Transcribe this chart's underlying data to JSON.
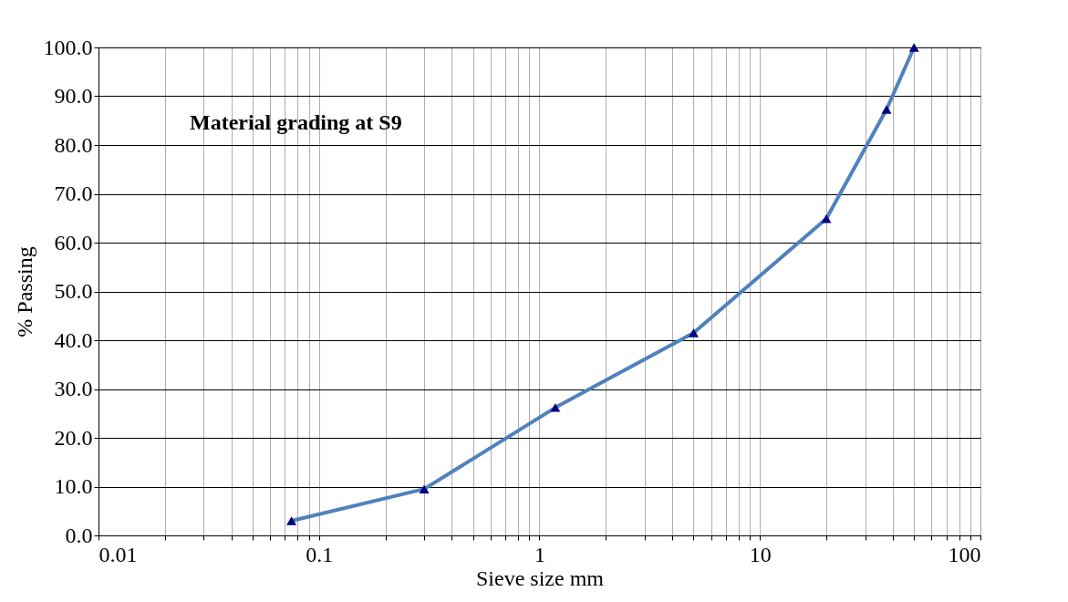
{
  "chart_data": {
    "type": "line",
    "title": "Material grading at S9",
    "xlabel": "Sieve size mm",
    "ylabel": "% Passing",
    "x": [
      0.075,
      0.3,
      1.18,
      5,
      20,
      37.5,
      50
    ],
    "series": [
      {
        "color": "#4f81bd",
        "values": [
          3.0,
          9.5,
          26.2,
          41.5,
          64.9,
          87.3,
          100.0
        ]
      }
    ],
    "log": "x",
    "xlim": [
      0.01,
      100
    ],
    "xticks": [
      {
        "value": 0.01,
        "label": "0.01"
      },
      {
        "value": 0.02,
        "label": null
      },
      {
        "value": 0.03,
        "label": null
      },
      {
        "value": 0.04,
        "label": null
      },
      {
        "value": 0.05,
        "label": null
      },
      {
        "value": 0.06,
        "label": null
      },
      {
        "value": 0.07,
        "label": null
      },
      {
        "value": 0.08,
        "label": null
      },
      {
        "value": 0.09,
        "label": null
      },
      {
        "value": 0.1,
        "label": "0.1"
      },
      {
        "value": 0.2,
        "label": null
      },
      {
        "value": 0.3,
        "label": null
      },
      {
        "value": 0.4,
        "label": null
      },
      {
        "value": 0.5,
        "label": null
      },
      {
        "value": 0.6,
        "label": null
      },
      {
        "value": 0.7,
        "label": null
      },
      {
        "value": 0.8,
        "label": null
      },
      {
        "value": 0.9,
        "label": null
      },
      {
        "value": 1,
        "label": "1"
      },
      {
        "value": 2,
        "label": null
      },
      {
        "value": 3,
        "label": null
      },
      {
        "value": 4,
        "label": null
      },
      {
        "value": 5,
        "label": null
      },
      {
        "value": 6,
        "label": null
      },
      {
        "value": 7,
        "label": null
      },
      {
        "value": 8,
        "label": null
      },
      {
        "value": 9,
        "label": null
      },
      {
        "value": 10,
        "label": "10"
      },
      {
        "value": 20,
        "label": null
      },
      {
        "value": 30,
        "label": null
      },
      {
        "value": 40,
        "label": null
      },
      {
        "value": 50,
        "label": null
      },
      {
        "value": 60,
        "label": null
      },
      {
        "value": 70,
        "label": null
      },
      {
        "value": 80,
        "label": null
      },
      {
        "value": 90,
        "label": null
      },
      {
        "value": 100,
        "label": "100"
      }
    ],
    "ylim": [
      0,
      100
    ],
    "yticks": [
      {
        "value": 0,
        "label": "0.0"
      },
      {
        "value": 10,
        "label": "10.0"
      },
      {
        "value": 20,
        "label": "20.0"
      },
      {
        "value": 30,
        "label": "30.0"
      },
      {
        "value": 40,
        "label": "40.0"
      },
      {
        "value": 50,
        "label": "50.0"
      },
      {
        "value": 60,
        "label": "60.0"
      },
      {
        "value": 70,
        "label": "70.0"
      },
      {
        "value": 80,
        "label": "80.0"
      },
      {
        "value": 90,
        "label": "90.0"
      },
      {
        "value": 100,
        "label": "100.0"
      }
    ],
    "grid": true,
    "marker": "triangle",
    "line_style": "solid"
  }
}
